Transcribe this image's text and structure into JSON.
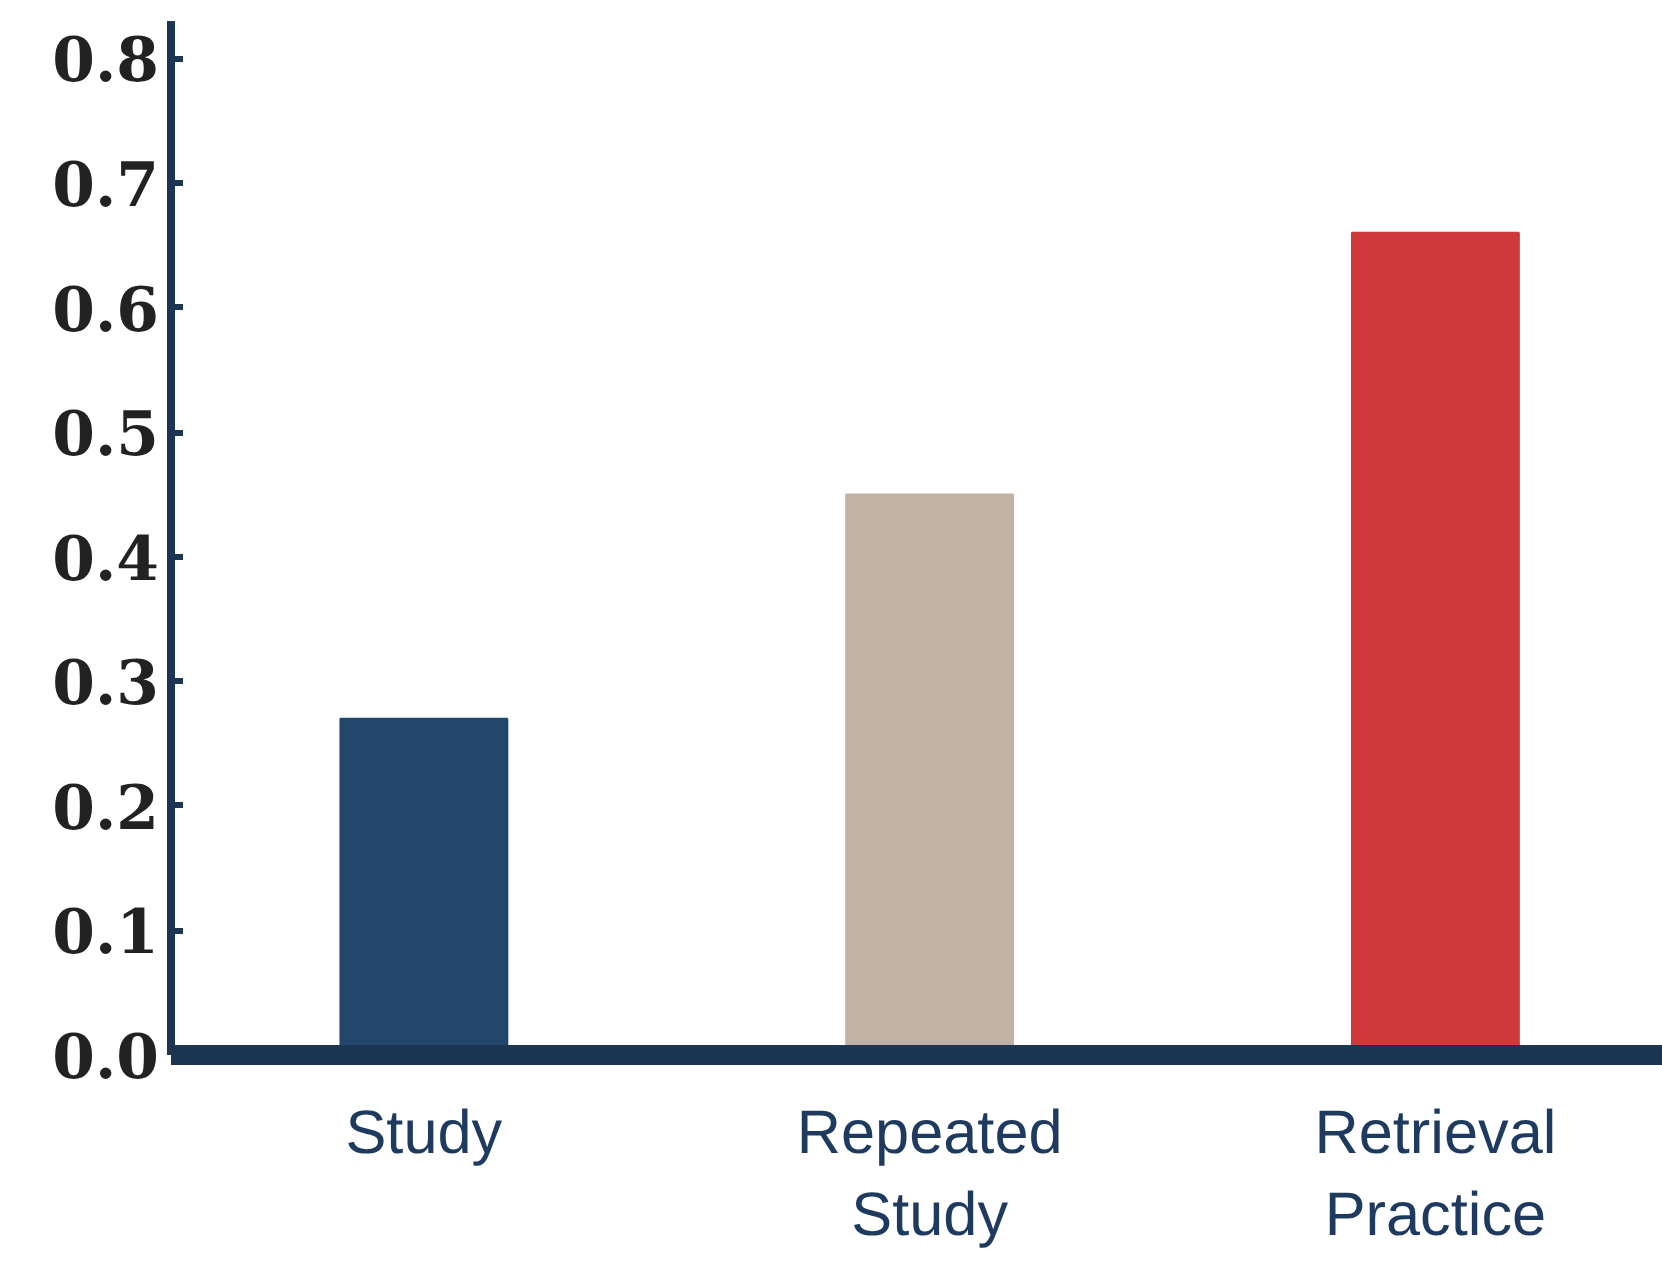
{
  "chart_data": {
    "type": "bar",
    "categories": [
      "Study",
      "Repeated\nStudy",
      "Retrieval\nPractice"
    ],
    "values": [
      0.27,
      0.45,
      0.66
    ],
    "colors": [
      "#23466b",
      "#c0b3a3",
      "#d0393b"
    ],
    "ylim": [
      0,
      0.83
    ],
    "yticks": [
      {
        "value": 0,
        "label": "0.0"
      },
      0.1,
      0.2,
      0.3,
      0.4,
      0.5,
      0.6,
      0.7,
      0.8
    ],
    "grid": false
  }
}
